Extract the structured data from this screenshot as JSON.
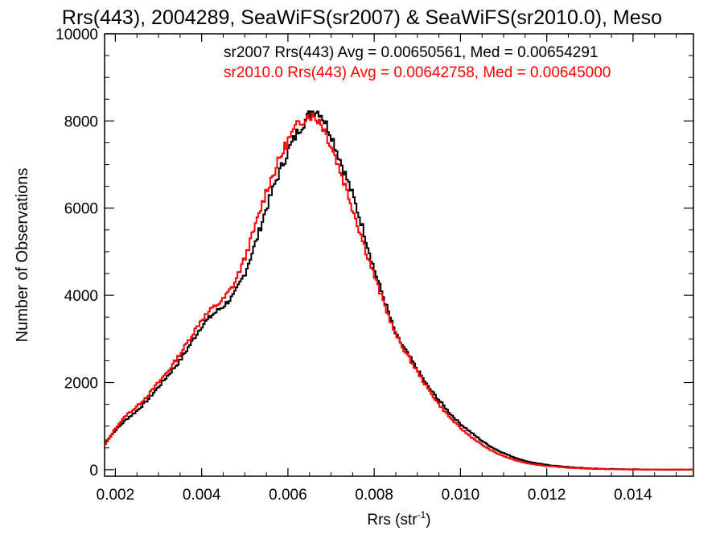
{
  "chart_data": {
    "type": "line",
    "title": "Rrs(443), 2004289, SeaWiFS(sr2007) & SeaWiFS(sr2010.0), Meso",
    "xlabel": "Rrs (str",
    "xlabel_sup": "-1",
    "xlabel_close": ")",
    "ylabel": "Number of Observations",
    "xlim": [
      0.00175,
      0.0154
    ],
    "ylim": [
      -150,
      10000
    ],
    "x_ticks": [
      0.002,
      0.004,
      0.006,
      0.008,
      0.01,
      0.012,
      0.014
    ],
    "x_tick_labels": [
      "0.002",
      "0.004",
      "0.006",
      "0.008",
      "0.010",
      "0.012",
      "0.014"
    ],
    "y_ticks": [
      0,
      2000,
      4000,
      6000,
      8000,
      10000
    ],
    "y_tick_labels": [
      "0",
      "2000",
      "4000",
      "6000",
      "8000",
      "10000"
    ],
    "grid": false,
    "legend_position": "top-right",
    "series": [
      {
        "name": "sr2007 Rrs(443) Avg = 0.00650561, Med = 0.00654291",
        "color": "#000000",
        "style": "step",
        "points": [
          [
            0.00175,
            600
          ],
          [
            0.002,
            900
          ],
          [
            0.00225,
            1150
          ],
          [
            0.0025,
            1350
          ],
          [
            0.00275,
            1600
          ],
          [
            0.003,
            1900
          ],
          [
            0.00325,
            2200
          ],
          [
            0.0035,
            2500
          ],
          [
            0.00375,
            2900
          ],
          [
            0.004,
            3300
          ],
          [
            0.00425,
            3550
          ],
          [
            0.0045,
            3750
          ],
          [
            0.00475,
            4000
          ],
          [
            0.005,
            4500
          ],
          [
            0.00525,
            5200
          ],
          [
            0.0055,
            6000
          ],
          [
            0.00575,
            6700
          ],
          [
            0.006,
            7300
          ],
          [
            0.00625,
            7800
          ],
          [
            0.0065,
            8150
          ],
          [
            0.0066,
            8250
          ],
          [
            0.00675,
            8200
          ],
          [
            0.007,
            7700
          ],
          [
            0.00725,
            7000
          ],
          [
            0.0075,
            6300
          ],
          [
            0.00775,
            5500
          ],
          [
            0.008,
            4600
          ],
          [
            0.00825,
            3850
          ],
          [
            0.0085,
            3100
          ],
          [
            0.00875,
            2700
          ],
          [
            0.009,
            2300
          ],
          [
            0.00925,
            1900
          ],
          [
            0.0095,
            1600
          ],
          [
            0.00975,
            1300
          ],
          [
            0.01,
            1050
          ],
          [
            0.01025,
            850
          ],
          [
            0.0105,
            660
          ],
          [
            0.01075,
            500
          ],
          [
            0.011,
            380
          ],
          [
            0.01125,
            280
          ],
          [
            0.0115,
            200
          ],
          [
            0.01175,
            150
          ],
          [
            0.012,
            110
          ],
          [
            0.0125,
            60
          ],
          [
            0.013,
            30
          ],
          [
            0.0135,
            15
          ],
          [
            0.014,
            8
          ],
          [
            0.0145,
            4
          ],
          [
            0.015,
            2
          ],
          [
            0.0154,
            0
          ]
        ]
      },
      {
        "name": "sr2010.0 Rrs(443) Avg = 0.00642758, Med = 0.00645000",
        "color": "#ff0000",
        "style": "step",
        "points": [
          [
            0.00175,
            550
          ],
          [
            0.002,
            950
          ],
          [
            0.00225,
            1250
          ],
          [
            0.0025,
            1450
          ],
          [
            0.00275,
            1700
          ],
          [
            0.003,
            2000
          ],
          [
            0.00325,
            2300
          ],
          [
            0.0035,
            2650
          ],
          [
            0.00375,
            3050
          ],
          [
            0.004,
            3450
          ],
          [
            0.00425,
            3700
          ],
          [
            0.0045,
            3900
          ],
          [
            0.00475,
            4250
          ],
          [
            0.005,
            4850
          ],
          [
            0.00525,
            5600
          ],
          [
            0.0055,
            6400
          ],
          [
            0.00575,
            7000
          ],
          [
            0.006,
            7550
          ],
          [
            0.00625,
            7950
          ],
          [
            0.0065,
            8150
          ],
          [
            0.00675,
            8000
          ],
          [
            0.007,
            7450
          ],
          [
            0.00725,
            6750
          ],
          [
            0.0075,
            6000
          ],
          [
            0.00775,
            5200
          ],
          [
            0.008,
            4450
          ],
          [
            0.00825,
            3750
          ],
          [
            0.0085,
            3100
          ],
          [
            0.00875,
            2650
          ],
          [
            0.009,
            2250
          ],
          [
            0.00925,
            1850
          ],
          [
            0.0095,
            1500
          ],
          [
            0.00975,
            1200
          ],
          [
            0.01,
            950
          ],
          [
            0.01025,
            750
          ],
          [
            0.0105,
            570
          ],
          [
            0.01075,
            420
          ],
          [
            0.011,
            310
          ],
          [
            0.01125,
            220
          ],
          [
            0.0115,
            160
          ],
          [
            0.01175,
            115
          ],
          [
            0.012,
            85
          ],
          [
            0.0125,
            45
          ],
          [
            0.013,
            22
          ],
          [
            0.0135,
            10
          ],
          [
            0.014,
            5
          ],
          [
            0.0145,
            2
          ],
          [
            0.015,
            1
          ],
          [
            0.0154,
            0
          ]
        ]
      }
    ]
  }
}
